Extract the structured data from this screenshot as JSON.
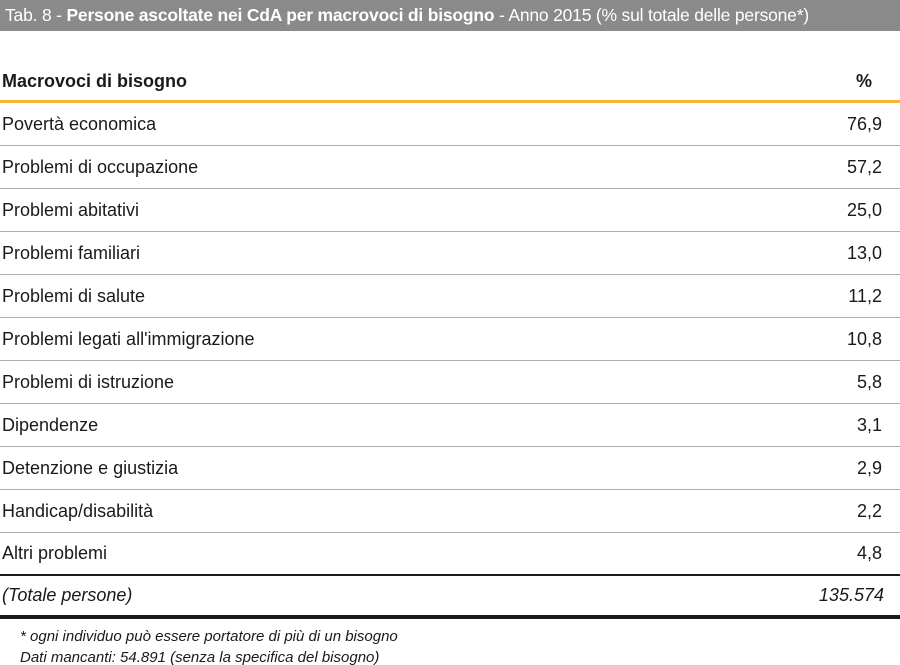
{
  "title_bar": {
    "prefix": "Tab. 8 - ",
    "bold": "Persone ascoltate nei CdA per macrovoci di bisogno",
    "suffix": " - Anno 2015  (% sul totale delle persone*)"
  },
  "table": {
    "col_label": "Macrovoci di bisogno",
    "col_value": "%",
    "rows": [
      {
        "label": "Povertà economica",
        "value": "76,9"
      },
      {
        "label": "Problemi di occupazione",
        "value": "57,2"
      },
      {
        "label": "Problemi abitativi",
        "value": "25,0"
      },
      {
        "label": "Problemi familiari",
        "value": "13,0"
      },
      {
        "label": "Problemi di salute",
        "value": "11,2"
      },
      {
        "label": "Problemi legati all'immigrazione",
        "value": "10,8"
      },
      {
        "label": "Problemi di istruzione",
        "value": "5,8"
      },
      {
        "label": "Dipendenze",
        "value": "3,1"
      },
      {
        "label": "Detenzione e giustizia",
        "value": "2,9"
      },
      {
        "label": "Handicap/disabilità",
        "value": "2,2"
      },
      {
        "label": "Altri problemi",
        "value": "4,8"
      }
    ],
    "total": {
      "label": "(Totale persone)",
      "value": "135.574"
    }
  },
  "footnotes": [
    "* ogni individuo può essere portatore di più di un bisogno",
    "Dati mancanti: 54.891 (senza la specifica del bisogno)"
  ],
  "colors": {
    "title_bar_bg": "#8a8a8a",
    "title_bar_text": "#ffffff",
    "accent_orange": "#f9b233",
    "row_separator": "#adadad",
    "text": "#1a1a1a"
  },
  "chart_data": {
    "type": "table",
    "title": "Tab. 8 - Persone ascoltate nei CdA per macrovoci di bisogno - Anno 2015 (% sul totale delle persone*)",
    "columns": [
      "Macrovoci di bisogno",
      "%"
    ],
    "categories": [
      "Povertà economica",
      "Problemi di occupazione",
      "Problemi abitativi",
      "Problemi familiari",
      "Problemi di salute",
      "Problemi legati all'immigrazione",
      "Problemi di istruzione",
      "Dipendenze",
      "Detenzione e giustizia",
      "Handicap/disabilità",
      "Altri problemi"
    ],
    "values": [
      76.9,
      57.2,
      25.0,
      13.0,
      11.2,
      10.8,
      5.8,
      3.1,
      2.9,
      2.2,
      4.8
    ],
    "total_label": "(Totale persone)",
    "total_value": 135574,
    "notes": [
      "* ogni individuo può essere portatore di più di un bisogno",
      "Dati mancanti: 54.891 (senza la specifica del bisogno)"
    ]
  }
}
